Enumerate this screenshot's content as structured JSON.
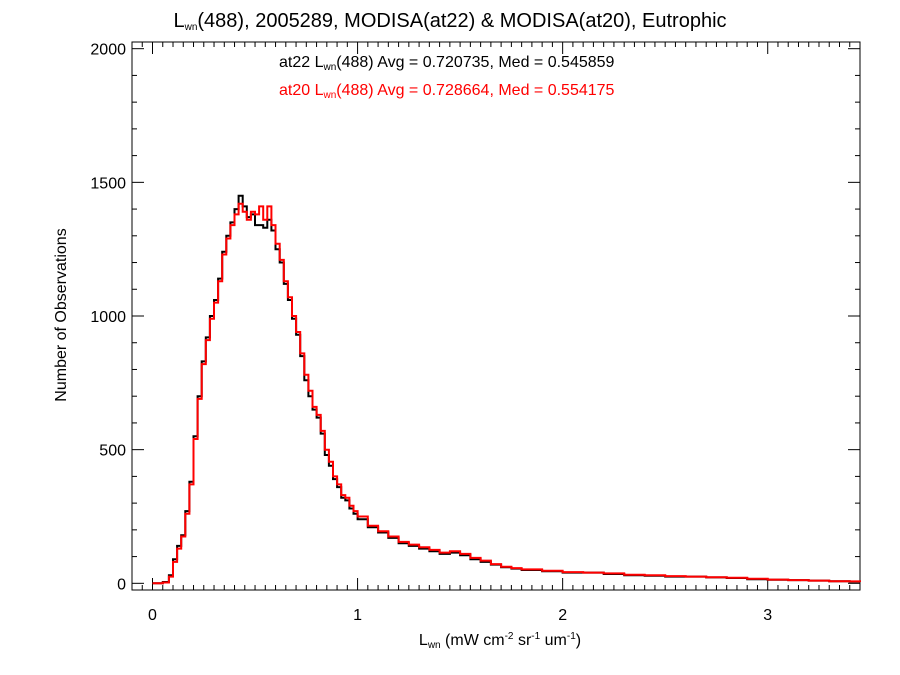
{
  "chart_data": {
    "type": "histogram-step",
    "title": {
      "main": "L",
      "sub": "wn",
      "rest": "(488), 2005289, MODISA(at22) & MODISA(at20), Eutrophic"
    },
    "xlabel": {
      "main": "L",
      "sub": "wn",
      "p1": " (mW cm",
      "sup1": "-2",
      "p2": " sr",
      "sup2": "-1",
      "p3": " um",
      "sup3": "-1",
      "p4": ")"
    },
    "ylabel": "Number of Observations",
    "xlim": [
      -0.1,
      3.45
    ],
    "ylim": [
      -25,
      2025
    ],
    "x_ticks": [
      0,
      1,
      2,
      3
    ],
    "x_tick_labels": [
      "0",
      "1",
      "2",
      "3"
    ],
    "y_ticks": [
      0,
      500,
      1000,
      1500,
      2000
    ],
    "y_tick_labels": [
      "0",
      "500",
      "1000",
      "1500",
      "2000"
    ],
    "annotations": [
      {
        "prefix": "at22 L",
        "sub": "wn",
        "rest": "(488) Avg = 0.720735, Med = 0.545859",
        "color": "#000000"
      },
      {
        "prefix": "at20 L",
        "sub": "wn",
        "rest": "(488) Avg = 0.728664, Med = 0.554175",
        "color": "#ff0000"
      }
    ],
    "series": [
      {
        "color": "#000000",
        "points": [
          [
            0.0,
            0
          ],
          [
            0.05,
            5
          ],
          [
            0.08,
            30
          ],
          [
            0.1,
            90
          ],
          [
            0.12,
            140
          ],
          [
            0.14,
            180
          ],
          [
            0.16,
            270
          ],
          [
            0.18,
            380
          ],
          [
            0.2,
            550
          ],
          [
            0.22,
            700
          ],
          [
            0.24,
            830
          ],
          [
            0.26,
            920
          ],
          [
            0.28,
            1000
          ],
          [
            0.3,
            1060
          ],
          [
            0.32,
            1140
          ],
          [
            0.34,
            1240
          ],
          [
            0.36,
            1300
          ],
          [
            0.38,
            1350
          ],
          [
            0.4,
            1400
          ],
          [
            0.42,
            1450
          ],
          [
            0.44,
            1410
          ],
          [
            0.46,
            1370
          ],
          [
            0.48,
            1380
          ],
          [
            0.5,
            1340
          ],
          [
            0.52,
            1340
          ],
          [
            0.54,
            1330
          ],
          [
            0.56,
            1360
          ],
          [
            0.58,
            1320
          ],
          [
            0.6,
            1250
          ],
          [
            0.62,
            1200
          ],
          [
            0.64,
            1120
          ],
          [
            0.66,
            1060
          ],
          [
            0.68,
            990
          ],
          [
            0.7,
            930
          ],
          [
            0.72,
            850
          ],
          [
            0.74,
            760
          ],
          [
            0.76,
            700
          ],
          [
            0.78,
            650
          ],
          [
            0.8,
            620
          ],
          [
            0.82,
            560
          ],
          [
            0.84,
            480
          ],
          [
            0.86,
            440
          ],
          [
            0.88,
            390
          ],
          [
            0.9,
            360
          ],
          [
            0.92,
            320
          ],
          [
            0.94,
            310
          ],
          [
            0.96,
            280
          ],
          [
            0.98,
            260
          ],
          [
            1.0,
            240
          ],
          [
            1.05,
            210
          ],
          [
            1.1,
            190
          ],
          [
            1.15,
            170
          ],
          [
            1.2,
            150
          ],
          [
            1.25,
            140
          ],
          [
            1.3,
            130
          ],
          [
            1.35,
            120
          ],
          [
            1.4,
            110
          ],
          [
            1.45,
            115
          ],
          [
            1.5,
            105
          ],
          [
            1.55,
            90
          ],
          [
            1.6,
            80
          ],
          [
            1.65,
            70
          ],
          [
            1.7,
            60
          ],
          [
            1.75,
            55
          ],
          [
            1.8,
            50
          ],
          [
            1.9,
            45
          ],
          [
            2.0,
            40
          ],
          [
            2.1,
            40
          ],
          [
            2.2,
            35
          ],
          [
            2.3,
            30
          ],
          [
            2.4,
            28
          ],
          [
            2.5,
            25
          ],
          [
            2.6,
            25
          ],
          [
            2.7,
            22
          ],
          [
            2.8,
            20
          ],
          [
            2.9,
            15
          ],
          [
            3.0,
            13
          ],
          [
            3.1,
            12
          ],
          [
            3.2,
            10
          ],
          [
            3.3,
            8
          ],
          [
            3.4,
            6
          ],
          [
            3.45,
            5
          ]
        ]
      },
      {
        "color": "#ff0000",
        "points": [
          [
            0.0,
            0
          ],
          [
            0.05,
            3
          ],
          [
            0.08,
            25
          ],
          [
            0.1,
            80
          ],
          [
            0.12,
            130
          ],
          [
            0.14,
            175
          ],
          [
            0.16,
            260
          ],
          [
            0.18,
            370
          ],
          [
            0.2,
            540
          ],
          [
            0.22,
            690
          ],
          [
            0.24,
            820
          ],
          [
            0.26,
            910
          ],
          [
            0.28,
            990
          ],
          [
            0.3,
            1050
          ],
          [
            0.32,
            1130
          ],
          [
            0.34,
            1230
          ],
          [
            0.36,
            1290
          ],
          [
            0.38,
            1340
          ],
          [
            0.4,
            1380
          ],
          [
            0.42,
            1420
          ],
          [
            0.44,
            1390
          ],
          [
            0.46,
            1360
          ],
          [
            0.48,
            1390
          ],
          [
            0.5,
            1380
          ],
          [
            0.52,
            1410
          ],
          [
            0.54,
            1360
          ],
          [
            0.56,
            1410
          ],
          [
            0.58,
            1340
          ],
          [
            0.6,
            1270
          ],
          [
            0.62,
            1210
          ],
          [
            0.64,
            1130
          ],
          [
            0.66,
            1070
          ],
          [
            0.68,
            1000
          ],
          [
            0.7,
            940
          ],
          [
            0.72,
            860
          ],
          [
            0.74,
            780
          ],
          [
            0.76,
            720
          ],
          [
            0.78,
            660
          ],
          [
            0.8,
            630
          ],
          [
            0.82,
            570
          ],
          [
            0.84,
            500
          ],
          [
            0.86,
            455
          ],
          [
            0.88,
            400
          ],
          [
            0.9,
            370
          ],
          [
            0.92,
            330
          ],
          [
            0.94,
            320
          ],
          [
            0.96,
            290
          ],
          [
            0.98,
            270
          ],
          [
            1.0,
            250
          ],
          [
            1.05,
            215
          ],
          [
            1.1,
            195
          ],
          [
            1.15,
            175
          ],
          [
            1.2,
            155
          ],
          [
            1.25,
            145
          ],
          [
            1.3,
            135
          ],
          [
            1.35,
            125
          ],
          [
            1.4,
            115
          ],
          [
            1.45,
            120
          ],
          [
            1.5,
            110
          ],
          [
            1.55,
            95
          ],
          [
            1.6,
            85
          ],
          [
            1.65,
            72
          ],
          [
            1.7,
            62
          ],
          [
            1.75,
            57
          ],
          [
            1.8,
            52
          ],
          [
            1.9,
            47
          ],
          [
            2.0,
            42
          ],
          [
            2.1,
            40
          ],
          [
            2.2,
            37
          ],
          [
            2.3,
            32
          ],
          [
            2.4,
            30
          ],
          [
            2.5,
            27
          ],
          [
            2.6,
            25
          ],
          [
            2.7,
            23
          ],
          [
            2.8,
            21
          ],
          [
            2.9,
            17
          ],
          [
            3.0,
            14
          ],
          [
            3.1,
            12
          ],
          [
            3.2,
            10
          ],
          [
            3.3,
            8
          ],
          [
            3.4,
            7
          ],
          [
            3.45,
            5
          ]
        ]
      }
    ]
  }
}
